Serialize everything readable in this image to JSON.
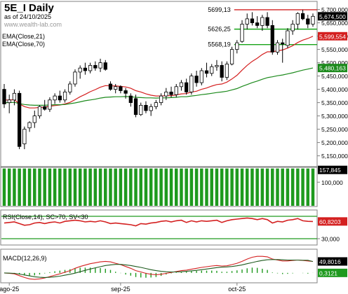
{
  "header": {
    "title": "5E_I Daily",
    "subtitle": "as of 24/10/2025",
    "watermark": "www.wealth-lab.com",
    "legend": [
      "EMA(Close,21)",
      "EMA(Close,70)"
    ]
  },
  "colors": {
    "price_up": "#ffffff",
    "price_down": "#000000",
    "ema21": "#d42020",
    "ema70": "#1c8a1c",
    "level_line": "#17a317",
    "resistance": "#d42020",
    "volume": "#1e9a1e",
    "rsi_line": "#d42020",
    "rsi_bands": "#1e9a1e",
    "macd_line": "#d42020",
    "macd_signal": "#1e5a1e",
    "macd_hist": "#1e9a1e",
    "frame": "#808080"
  },
  "chart_data": [
    {
      "type": "candlestick",
      "title": "5E_I Daily",
      "ylim": [
        5120000,
        5720000
      ],
      "y_ticks": [
        {
          "value": 5700000,
          "label": "5,700,000"
        },
        {
          "value": 5650000,
          "label": "5,650,000"
        },
        {
          "value": 5600000,
          "label": "5,600,000"
        },
        {
          "value": 5550000,
          "label": "5,550,000"
        },
        {
          "value": 5500000,
          "label": "5,500,000"
        },
        {
          "value": 5450000,
          "label": "5,450,000"
        },
        {
          "value": 5400000,
          "label": "5,400,000"
        },
        {
          "value": 5350000,
          "label": "5,350,000"
        },
        {
          "value": 5300000,
          "label": "5,300,000"
        },
        {
          "value": 5250000,
          "label": "5,250,000"
        },
        {
          "value": 5200000,
          "label": "5,200,000"
        },
        {
          "value": 5150000,
          "label": "5,150,000"
        }
      ],
      "x_labels": [
        {
          "index": 1,
          "label": "ago-25"
        },
        {
          "index": 23,
          "label": "sep-25"
        },
        {
          "index": 46,
          "label": "oct-25"
        }
      ],
      "candles": [
        {
          "o": 5400000,
          "h": 5420000,
          "l": 5330000,
          "c": 5345000
        },
        {
          "o": 5350000,
          "h": 5380000,
          "l": 5310000,
          "c": 5360000
        },
        {
          "o": 5360000,
          "h": 5400000,
          "l": 5340000,
          "c": 5385000
        },
        {
          "o": 5385000,
          "h": 5395000,
          "l": 5175000,
          "c": 5185000
        },
        {
          "o": 5195000,
          "h": 5260000,
          "l": 5175000,
          "c": 5250000
        },
        {
          "o": 5255000,
          "h": 5280000,
          "l": 5240000,
          "c": 5275000
        },
        {
          "o": 5275000,
          "h": 5320000,
          "l": 5255000,
          "c": 5300000
        },
        {
          "o": 5300000,
          "h": 5340000,
          "l": 5290000,
          "c": 5335000
        },
        {
          "o": 5335000,
          "h": 5360000,
          "l": 5320000,
          "c": 5325000
        },
        {
          "o": 5325000,
          "h": 5370000,
          "l": 5315000,
          "c": 5360000
        },
        {
          "o": 5360000,
          "h": 5385000,
          "l": 5345000,
          "c": 5375000
        },
        {
          "o": 5375000,
          "h": 5395000,
          "l": 5350000,
          "c": 5360000
        },
        {
          "o": 5360000,
          "h": 5400000,
          "l": 5350000,
          "c": 5390000
        },
        {
          "o": 5390000,
          "h": 5430000,
          "l": 5380000,
          "c": 5420000
        },
        {
          "o": 5420000,
          "h": 5475000,
          "l": 5410000,
          "c": 5465000
        },
        {
          "o": 5465000,
          "h": 5490000,
          "l": 5440000,
          "c": 5480000
        },
        {
          "o": 5480000,
          "h": 5500000,
          "l": 5455000,
          "c": 5470000
        },
        {
          "o": 5470000,
          "h": 5500000,
          "l": 5460000,
          "c": 5490000
        },
        {
          "o": 5490000,
          "h": 5505000,
          "l": 5470000,
          "c": 5480000
        },
        {
          "o": 5480000,
          "h": 5515000,
          "l": 5465000,
          "c": 5500000
        },
        {
          "o": 5500000,
          "h": 5510000,
          "l": 5470000,
          "c": 5475000
        },
        {
          "o": 5420000,
          "h": 5430000,
          "l": 5395000,
          "c": 5400000
        },
        {
          "o": 5400000,
          "h": 5420000,
          "l": 5385000,
          "c": 5410000
        },
        {
          "o": 5410000,
          "h": 5415000,
          "l": 5385000,
          "c": 5395000
        },
        {
          "o": 5395000,
          "h": 5405000,
          "l": 5365000,
          "c": 5385000
        },
        {
          "o": 5375000,
          "h": 5385000,
          "l": 5335000,
          "c": 5350000
        },
        {
          "o": 5365000,
          "h": 5380000,
          "l": 5295000,
          "c": 5305000
        },
        {
          "o": 5305000,
          "h": 5350000,
          "l": 5300000,
          "c": 5340000
        },
        {
          "o": 5340000,
          "h": 5355000,
          "l": 5310000,
          "c": 5320000
        },
        {
          "o": 5320000,
          "h": 5345000,
          "l": 5300000,
          "c": 5335000
        },
        {
          "o": 5335000,
          "h": 5360000,
          "l": 5325000,
          "c": 5350000
        },
        {
          "o": 5350000,
          "h": 5385000,
          "l": 5340000,
          "c": 5375000
        },
        {
          "o": 5375000,
          "h": 5405000,
          "l": 5360000,
          "c": 5390000
        },
        {
          "o": 5390000,
          "h": 5410000,
          "l": 5370000,
          "c": 5380000
        },
        {
          "o": 5380000,
          "h": 5420000,
          "l": 5370000,
          "c": 5410000
        },
        {
          "o": 5410000,
          "h": 5435000,
          "l": 5395000,
          "c": 5425000
        },
        {
          "o": 5425000,
          "h": 5440000,
          "l": 5380000,
          "c": 5390000
        },
        {
          "o": 5390000,
          "h": 5460000,
          "l": 5380000,
          "c": 5450000
        },
        {
          "o": 5450000,
          "h": 5470000,
          "l": 5410000,
          "c": 5425000
        },
        {
          "o": 5425000,
          "h": 5480000,
          "l": 5415000,
          "c": 5470000
        },
        {
          "o": 5470000,
          "h": 5500000,
          "l": 5445000,
          "c": 5460000
        },
        {
          "o": 5460000,
          "h": 5495000,
          "l": 5450000,
          "c": 5485000
        },
        {
          "o": 5485000,
          "h": 5510000,
          "l": 5470000,
          "c": 5490000
        },
        {
          "o": 5490000,
          "h": 5505000,
          "l": 5430000,
          "c": 5445000
        },
        {
          "o": 5445000,
          "h": 5505000,
          "l": 5435000,
          "c": 5495000
        },
        {
          "o": 5495000,
          "h": 5560000,
          "l": 5490000,
          "c": 5550000
        },
        {
          "o": 5550000,
          "h": 5585000,
          "l": 5535000,
          "c": 5575000
        },
        {
          "o": 5580000,
          "h": 5660000,
          "l": 5575000,
          "c": 5645000
        },
        {
          "o": 5645000,
          "h": 5685000,
          "l": 5625000,
          "c": 5665000
        },
        {
          "o": 5665000,
          "h": 5690000,
          "l": 5640000,
          "c": 5650000
        },
        {
          "o": 5650000,
          "h": 5675000,
          "l": 5630000,
          "c": 5640000
        },
        {
          "o": 5640000,
          "h": 5680000,
          "l": 5620000,
          "c": 5670000
        },
        {
          "o": 5670000,
          "h": 5690000,
          "l": 5630000,
          "c": 5640000
        },
        {
          "o": 5640000,
          "h": 5660000,
          "l": 5530000,
          "c": 5540000
        },
        {
          "o": 5540000,
          "h": 5585000,
          "l": 5530000,
          "c": 5575000
        },
        {
          "o": 5575000,
          "h": 5590000,
          "l": 5500000,
          "c": 5570000
        },
        {
          "o": 5565000,
          "h": 5630000,
          "l": 5555000,
          "c": 5620000
        },
        {
          "o": 5620000,
          "h": 5660000,
          "l": 5605000,
          "c": 5645000
        },
        {
          "o": 5645000,
          "h": 5690000,
          "l": 5625000,
          "c": 5685000
        },
        {
          "o": 5685000,
          "h": 5699000,
          "l": 5660000,
          "c": 5665000
        },
        {
          "o": 5665000,
          "h": 5680000,
          "l": 5630000,
          "c": 5645000
        },
        {
          "o": 5645000,
          "h": 5685000,
          "l": 5635000,
          "c": 5674500
        }
      ],
      "series": [
        {
          "name": "EMA(Close,21)",
          "last_label": "5,599,554",
          "values": [
            5360000,
            5360000,
            5361000,
            5345000,
            5335000,
            5330000,
            5330000,
            5332000,
            5333000,
            5336000,
            5339000,
            5341000,
            5345000,
            5351000,
            5361000,
            5372000,
            5381000,
            5391000,
            5399000,
            5408000,
            5414000,
            5413000,
            5413000,
            5411000,
            5409000,
            5404000,
            5395000,
            5390000,
            5383000,
            5378000,
            5375000,
            5375000,
            5376000,
            5376000,
            5379000,
            5383000,
            5384000,
            5390000,
            5393000,
            5400000,
            5405000,
            5412000,
            5418000,
            5420000,
            5427000,
            5439000,
            5453000,
            5472000,
            5490000,
            5505000,
            5517000,
            5531000,
            5541000,
            5541000,
            5545000,
            5548000,
            5555000,
            5564000,
            5576000,
            5585000,
            5591000,
            5599554
          ]
        },
        {
          "name": "EMA(Close,70)",
          "last_label": "5,480,163",
          "values": [
            5350000,
            5350000,
            5351000,
            5346000,
            5343000,
            5341000,
            5340000,
            5340000,
            5340000,
            5341000,
            5342000,
            5342000,
            5343000,
            5346000,
            5349000,
            5353000,
            5357000,
            5360000,
            5363000,
            5367000,
            5370000,
            5371000,
            5372000,
            5372000,
            5373000,
            5372000,
            5370000,
            5369000,
            5368000,
            5368000,
            5367000,
            5368000,
            5368000,
            5369000,
            5370000,
            5372000,
            5372000,
            5375000,
            5377000,
            5380000,
            5382000,
            5385000,
            5388000,
            5390000,
            5393000,
            5398000,
            5403000,
            5411000,
            5418000,
            5425000,
            5431000,
            5438000,
            5444000,
            5447000,
            5451000,
            5454000,
            5458000,
            5462000,
            5467000,
            5472000,
            5476000,
            5480163
          ]
        }
      ],
      "levels": [
        {
          "name": "resistance",
          "value": 5699130,
          "label": "5699,13",
          "from_index": 46
        },
        {
          "name": "level-1",
          "value": 5626250,
          "label": "5626,25",
          "from_index": 46
        },
        {
          "name": "level-2",
          "value": 5568190,
          "label": "5568,19",
          "from_index": 46
        }
      ],
      "last_close_label": "5,674,500"
    },
    {
      "type": "bar",
      "name": "volume",
      "ylim": [
        0,
        160000
      ],
      "y_ticks": [
        {
          "value": 100000,
          "label": "100,000"
        }
      ],
      "last_label": "157,845",
      "values": [
        157845,
        157845,
        157845,
        157845,
        157845,
        157845,
        157845,
        157845,
        157845,
        157845,
        157845,
        157845,
        157845,
        157845,
        157845,
        157845,
        157845,
        157845,
        157845,
        157845,
        157845,
        157845,
        157845,
        157845,
        157845,
        157845,
        157845,
        157845,
        157845,
        157845,
        157845,
        157845,
        157845,
        157845,
        157845,
        157845,
        157845,
        157845,
        157845,
        157845,
        157845,
        157845,
        157845,
        157845,
        157845,
        157845,
        157845,
        157845,
        157845,
        157845,
        157845,
        157845,
        157845,
        157845,
        157845,
        157845,
        157845,
        157845,
        157845,
        157845,
        157845,
        157845
      ]
    },
    {
      "type": "line",
      "name": "rsi",
      "title": "RSI(Close,14), SC>70, SV<30",
      "ylim": [
        20,
        80
      ],
      "bands": [
        70,
        30
      ],
      "y_ticks": [
        {
          "value": 30,
          "label": "30,000"
        }
      ],
      "last_label": "60,8203",
      "values": [
        58,
        59,
        60,
        57,
        54,
        55,
        58,
        59,
        57,
        59,
        60,
        58,
        61,
        62,
        63,
        62,
        60,
        61,
        60,
        62,
        60,
        57,
        58,
        57,
        56,
        55,
        53,
        57,
        56,
        58,
        59,
        61,
        62,
        60,
        62,
        63,
        59,
        62,
        60,
        62,
        61,
        62,
        63,
        59,
        62,
        64,
        65,
        66,
        67,
        66,
        64,
        66,
        64,
        58,
        61,
        60,
        63,
        64,
        66,
        62,
        61,
        60.8
      ]
    },
    {
      "type": "line",
      "name": "macd",
      "title": "MACD(12,26,9)",
      "ylim": [
        -40,
        100
      ],
      "last_label": "49,8016",
      "hist_last_label": "0,3121",
      "series": [
        {
          "name": "MACD",
          "values": [
            0,
            -2,
            -4,
            -12,
            -20,
            -26,
            -28,
            -26,
            -22,
            -16,
            -10,
            -4,
            3,
            10,
            20,
            28,
            34,
            40,
            44,
            48,
            50,
            48,
            42,
            36,
            28,
            20,
            10,
            4,
            -2,
            -6,
            -8,
            -6,
            -2,
            2,
            6,
            10,
            12,
            16,
            20,
            24,
            27,
            30,
            32,
            30,
            31,
            36,
            42,
            50,
            60,
            68,
            72,
            72,
            70,
            60,
            56,
            52,
            52,
            54,
            56,
            54,
            52,
            49.8
          ]
        },
        {
          "name": "Signal",
          "values": [
            0,
            -1,
            -2,
            -5,
            -9,
            -13,
            -17,
            -19,
            -20,
            -19,
            -17,
            -14,
            -10,
            -6,
            -1,
            5,
            11,
            17,
            22,
            27,
            32,
            35,
            37,
            37,
            35,
            32,
            28,
            24,
            19,
            14,
            10,
            7,
            5,
            4,
            4,
            5,
            7,
            9,
            11,
            14,
            17,
            20,
            23,
            25,
            26,
            28,
            31,
            35,
            40,
            45,
            50,
            54,
            57,
            58,
            58,
            57,
            56,
            56,
            56,
            55,
            55,
            49.5
          ]
        },
        {
          "name": "Histogram",
          "values": [
            0,
            -1,
            -2,
            -7,
            -11,
            -13,
            -11,
            -7,
            -2,
            3,
            7,
            10,
            13,
            16,
            21,
            23,
            23,
            23,
            22,
            21,
            18,
            13,
            5,
            -1,
            -7,
            -12,
            -18,
            -20,
            -21,
            -20,
            -18,
            -13,
            -7,
            -2,
            2,
            5,
            5,
            7,
            9,
            10,
            10,
            10,
            9,
            5,
            5,
            8,
            11,
            15,
            20,
            23,
            22,
            18,
            13,
            2,
            -2,
            -5,
            -4,
            -2,
            0,
            -1,
            -3,
            0.3121
          ]
        }
      ]
    }
  ]
}
